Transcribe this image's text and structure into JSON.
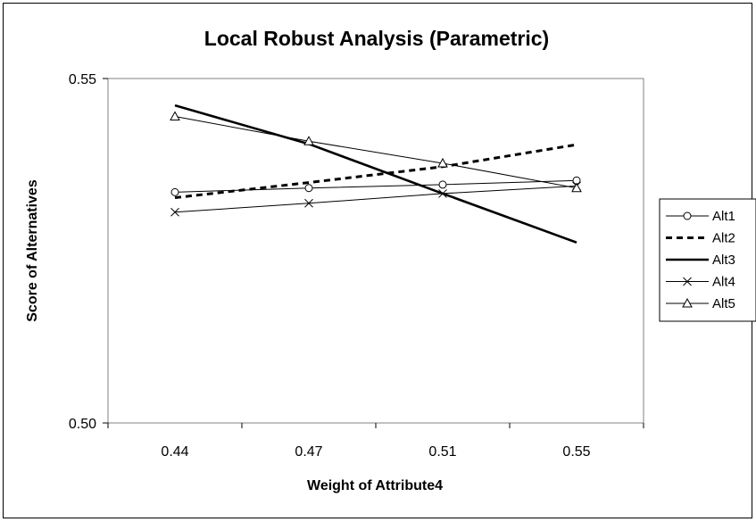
{
  "chart_data": {
    "type": "line",
    "title": "Local Robust Analysis (Parametric)",
    "xlabel": "Weight of Attribute4",
    "ylabel": "Score of Alternatives",
    "categories": [
      "0.44",
      "0.47",
      "0.51",
      "0.55"
    ],
    "y_tick_labels": [
      "0.50",
      "0.55"
    ],
    "ylim": [
      0.5,
      0.55
    ],
    "grid": false,
    "legend_position": "right",
    "series": [
      {
        "name": "Alt1",
        "values": [
          0.5335,
          0.5341,
          0.5346,
          0.5352
        ],
        "marker": "circle",
        "line": "solid-thin",
        "color": "#000000"
      },
      {
        "name": "Alt2",
        "values": [
          0.5327,
          0.5349,
          0.5372,
          0.5404
        ],
        "marker": "none",
        "line": "dashed-thick",
        "color": "#000000"
      },
      {
        "name": "Alt3",
        "values": [
          0.5461,
          0.5405,
          0.5333,
          0.5262
        ],
        "marker": "none",
        "line": "solid-thick",
        "color": "#000000"
      },
      {
        "name": "Alt4",
        "values": [
          0.5306,
          0.5319,
          0.5333,
          0.5344
        ],
        "marker": "x",
        "line": "solid-thin",
        "color": "#000000"
      },
      {
        "name": "Alt5",
        "values": [
          0.5445,
          0.5409,
          0.5377,
          0.5341
        ],
        "marker": "triangle",
        "line": "solid-thin",
        "color": "#000000"
      }
    ]
  }
}
